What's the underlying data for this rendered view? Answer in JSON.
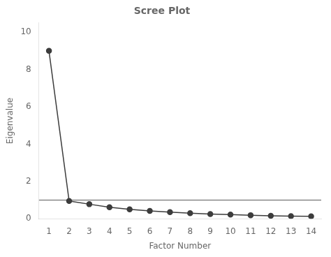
{
  "chart_data": {
    "type": "line",
    "title": "Scree Plot",
    "xlabel": "Factor Number",
    "ylabel": "Eigenvalue",
    "x": [
      1,
      2,
      3,
      4,
      5,
      6,
      7,
      8,
      9,
      10,
      11,
      12,
      13,
      14
    ],
    "values": [
      9.0,
      0.95,
      0.78,
      0.62,
      0.5,
      0.42,
      0.35,
      0.3,
      0.25,
      0.22,
      0.19,
      0.16,
      0.14,
      0.13
    ],
    "color": "#3c3c3c",
    "marker": "circle",
    "reference_line": {
      "y": 1.0,
      "color": "#5a5a5a"
    },
    "xlim": [
      0.5,
      14.5
    ],
    "ylim": [
      0.0,
      10.5
    ],
    "xticks": [
      1,
      2,
      3,
      4,
      5,
      6,
      7,
      8,
      9,
      10,
      11,
      12,
      13,
      14
    ],
    "yticks": [
      0,
      2,
      4,
      6,
      8,
      10
    ],
    "grid": false
  }
}
